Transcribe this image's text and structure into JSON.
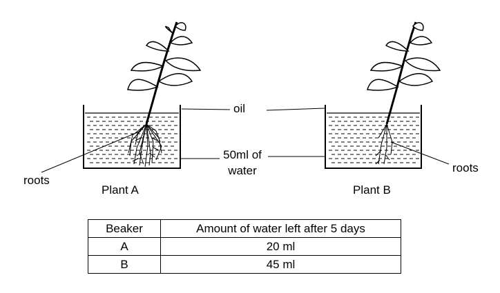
{
  "labels": {
    "oil": "oil",
    "water_line1": "50ml of",
    "water_line2": "water",
    "roots_a": "roots",
    "roots_b": "roots",
    "plant_a": "Plant A",
    "plant_b": "Plant B"
  },
  "table": {
    "headers": [
      "Beaker",
      "Amount of water left after 5 days"
    ],
    "rows": [
      [
        "A",
        "20 ml"
      ],
      [
        "B",
        "45 ml"
      ]
    ]
  },
  "plants": [
    {
      "id": "A",
      "roots": "dense"
    },
    {
      "id": "B",
      "roots": "sparse"
    }
  ]
}
